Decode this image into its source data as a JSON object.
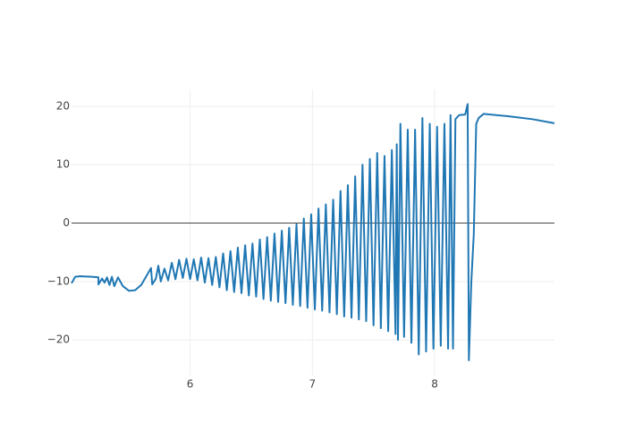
{
  "chart_data": {
    "type": "line",
    "x": [
      5.03,
      5.06,
      5.1,
      5.2,
      5.25,
      5.25,
      5.28,
      5.3,
      5.32,
      5.34,
      5.36,
      5.38,
      5.41,
      5.45,
      5.5,
      5.55,
      5.6,
      5.65,
      5.68,
      5.69,
      5.72,
      5.74,
      5.76,
      5.79,
      5.82,
      5.85,
      5.88,
      5.91,
      5.94,
      5.97,
      6.0,
      6.03,
      6.06,
      6.09,
      6.12,
      6.15,
      6.18,
      6.21,
      6.24,
      6.27,
      6.3,
      6.33,
      6.36,
      6.39,
      6.42,
      6.45,
      6.48,
      6.51,
      6.54,
      6.57,
      6.6,
      6.63,
      6.66,
      6.69,
      6.72,
      6.75,
      6.78,
      6.81,
      6.84,
      6.87,
      6.9,
      6.93,
      6.96,
      6.99,
      7.02,
      7.05,
      7.08,
      7.11,
      7.14,
      7.17,
      7.2,
      7.23,
      7.26,
      7.29,
      7.32,
      7.35,
      7.38,
      7.41,
      7.44,
      7.47,
      7.5,
      7.53,
      7.56,
      7.59,
      7.62,
      7.65,
      7.68,
      7.69,
      7.7,
      7.72,
      7.75,
      7.78,
      7.81,
      7.84,
      7.87,
      7.9,
      7.93,
      7.96,
      7.99,
      8.02,
      8.05,
      8.08,
      8.11,
      8.13,
      8.15,
      8.17,
      8.2,
      8.25,
      8.27,
      8.28,
      8.3,
      8.32,
      8.34,
      8.36,
      8.4,
      8.6,
      8.8,
      8.98
    ],
    "series": [
      {
        "color": "#1f77b4",
        "values": [
          -10.3,
          -9.2,
          -9.1,
          -9.2,
          -9.3,
          -10.5,
          -9.5,
          -10.2,
          -9.3,
          -10.6,
          -9.2,
          -10.8,
          -9.3,
          -10.8,
          -11.6,
          -11.5,
          -10.6,
          -8.8,
          -7.7,
          -10.5,
          -9.5,
          -7.3,
          -10,
          -7.8,
          -9.8,
          -6.8,
          -9.6,
          -6.3,
          -9.4,
          -6.1,
          -9.6,
          -6.2,
          -9.8,
          -5.9,
          -10.2,
          -6.0,
          -10.6,
          -5.8,
          -11.0,
          -5.2,
          -11.5,
          -4.8,
          -11.8,
          -4.2,
          -12.0,
          -3.8,
          -12.4,
          -3.5,
          -12.6,
          -2.8,
          -13.0,
          -2.4,
          -13.3,
          -1.8,
          -13.5,
          -1.3,
          -13.7,
          -0.8,
          -14.0,
          -0.2,
          -14.2,
          0.8,
          -14.5,
          1.5,
          -14.8,
          2.5,
          -15.0,
          3.2,
          -15.3,
          4.0,
          -15.6,
          5.5,
          -16.0,
          6.5,
          -16.2,
          8.0,
          -16.5,
          10.0,
          -16.8,
          11.0,
          -17.5,
          12.0,
          -18.0,
          11.5,
          -18.5,
          12.5,
          -19.0,
          13.5,
          -20.0,
          17.0,
          -19.5,
          16.0,
          -20.5,
          16.0,
          -22.5,
          18.0,
          -22.0,
          17.0,
          -21.5,
          16.5,
          -21.0,
          17.0,
          -21.5,
          18.5,
          -21.5,
          17.8,
          18.5,
          18.6,
          20.4,
          -23.5,
          -10.0,
          -2.0,
          17.0,
          18.0,
          18.7,
          18.3,
          17.8,
          17.1
        ]
      }
    ],
    "xlim": [
      5.03,
      8.98
    ],
    "ylim": [
      -26.1,
      22.9
    ],
    "xticks": [
      6,
      7,
      8
    ],
    "yticks": [
      {
        "value": -20,
        "label": "−20"
      },
      {
        "value": -10,
        "label": "−10"
      },
      0,
      10,
      20
    ],
    "grid": true
  }
}
